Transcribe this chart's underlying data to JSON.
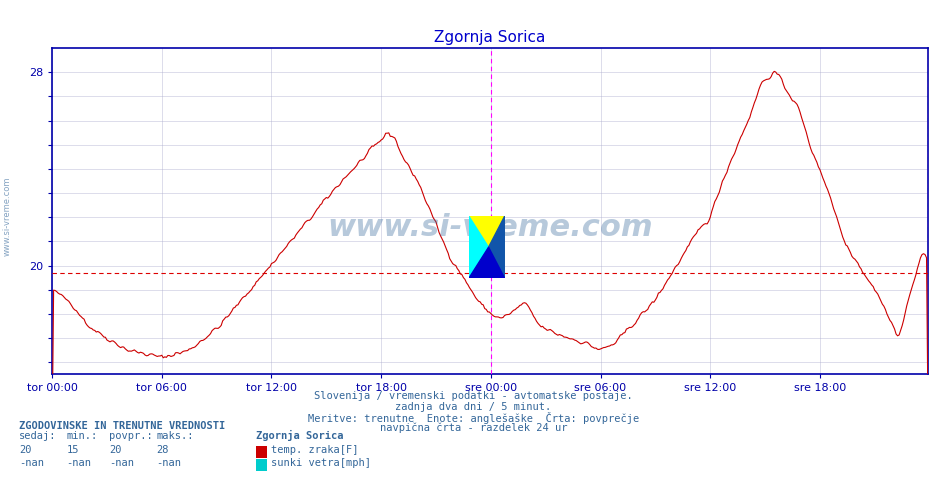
{
  "title": "Zgornja Sorica",
  "title_color": "#0000cc",
  "bg_color": "#ffffff",
  "plot_bg_color": "#ffffff",
  "grid_color": "#aaaacc",
  "line_color": "#cc0000",
  "avg_line_color": "#dd0000",
  "avg_line_value": 19.7,
  "vline_color": "#ff00ff",
  "ylim": [
    15.5,
    29.0
  ],
  "yticks": [
    16,
    17,
    18,
    19,
    20,
    21,
    22,
    23,
    24,
    25,
    26,
    27,
    28
  ],
  "ytick_labels": [
    "",
    "",
    "",
    "",
    "20",
    "",
    "",
    "",
    "",
    "",
    "",
    "",
    "28"
  ],
  "xlabel_color": "#000080",
  "ylabel_color": "#000080",
  "xtick_labels": [
    "tor 00:00",
    "tor 06:00",
    "tor 12:00",
    "tor 18:00",
    "sre 00:00",
    "sre 06:00",
    "sre 12:00",
    "sre 18:00"
  ],
  "xtick_positions": [
    0,
    72,
    144,
    216,
    288,
    360,
    432,
    504
  ],
  "vline_positions": [
    288,
    575
  ],
  "total_points": 576,
  "footer_lines": [
    "Slovenija / vremenski podatki - avtomatske postaje.",
    "zadnja dva dni / 5 minut.",
    "Meritve: trenutne  Enote: anglešaške  Črta: povprečje",
    "navpična črta - razdelek 24 ur"
  ],
  "footer_color": "#336699",
  "legend_title": "ZGODOVINSKE IN TRENUTNE VREDNOSTI",
  "legend_headers": [
    "sedaj:",
    "min.:",
    "povpr.:",
    "maks.:"
  ],
  "legend_values_row1": [
    "20",
    "15",
    "20",
    "28"
  ],
  "legend_values_row2": [
    "-nan",
    "-nan",
    "-nan",
    "-nan"
  ],
  "legend_station": "Zgornja Sorica",
  "legend_items": [
    {
      "color": "#cc0000",
      "label": "temp. zraka[F]"
    },
    {
      "color": "#00cccc",
      "label": "sunki vetra[mph]"
    }
  ],
  "watermark_text": "www.si-vreme.com",
  "watermark_color": "#336699",
  "watermark_alpha": 0.35,
  "axis_color": "#0000aa",
  "tick_color": "#0000aa",
  "tick_fontsize": 8,
  "title_fontsize": 11
}
